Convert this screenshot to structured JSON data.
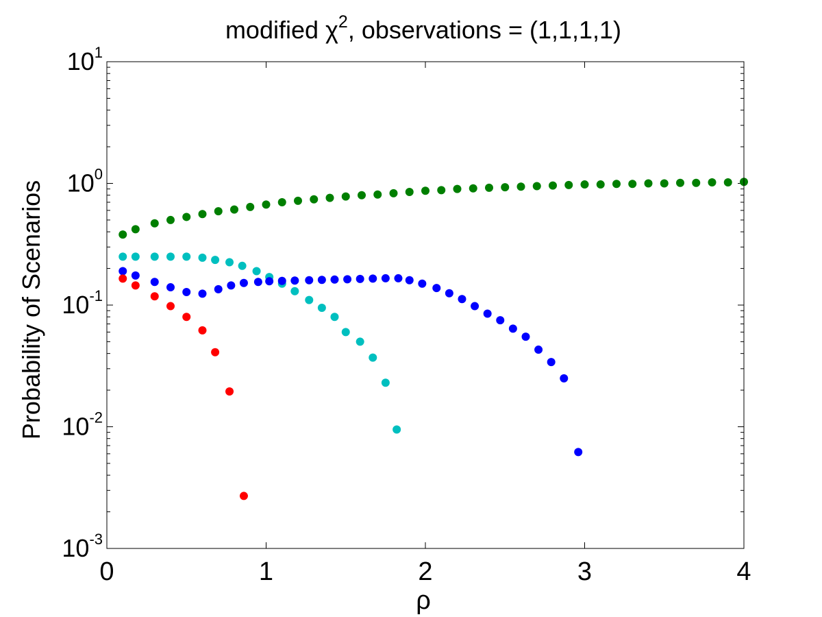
{
  "chart_data": {
    "type": "scatter",
    "title": "modified χ², observations = (1,1,1,1)",
    "title_parts": {
      "pre": "modified χ",
      "sup": "2",
      "post": ", observations = (1,1,1,1)"
    },
    "xlabel": "ρ",
    "ylabel": "Probability of Scenarios",
    "xlim": [
      0,
      4
    ],
    "ylim": [
      0.001,
      10
    ],
    "yscale": "log",
    "grid": false,
    "x_ticks": [
      {
        "value": 0,
        "label": "0"
      },
      {
        "value": 1,
        "label": "1"
      },
      {
        "value": 2,
        "label": "2"
      },
      {
        "value": 3,
        "label": "3"
      },
      {
        "value": 4,
        "label": "4"
      }
    ],
    "y_ticks": [
      {
        "value": 0.001,
        "base": "10",
        "exp": "-3"
      },
      {
        "value": 0.01,
        "base": "10",
        "exp": "-2"
      },
      {
        "value": 0.1,
        "base": "10",
        "exp": "-1"
      },
      {
        "value": 1,
        "base": "10",
        "exp": "0"
      },
      {
        "value": 10,
        "base": "10",
        "exp": "1"
      }
    ],
    "series": [
      {
        "color": "#007f00",
        "x": [
          0.1,
          0.18,
          0.3,
          0.4,
          0.5,
          0.6,
          0.7,
          0.8,
          0.9,
          1.0,
          1.1,
          1.2,
          1.3,
          1.4,
          1.5,
          1.6,
          1.7,
          1.8,
          1.9,
          2.0,
          2.1,
          2.2,
          2.3,
          2.4,
          2.5,
          2.6,
          2.7,
          2.8,
          2.9,
          3.0,
          3.1,
          3.2,
          3.3,
          3.4,
          3.5,
          3.6,
          3.7,
          3.8,
          3.9,
          4.0
        ],
        "y": [
          0.38,
          0.42,
          0.47,
          0.5,
          0.53,
          0.56,
          0.59,
          0.61,
          0.64,
          0.67,
          0.7,
          0.72,
          0.74,
          0.76,
          0.78,
          0.8,
          0.81,
          0.83,
          0.85,
          0.87,
          0.88,
          0.9,
          0.91,
          0.92,
          0.93,
          0.94,
          0.95,
          0.96,
          0.97,
          0.98,
          0.98,
          0.99,
          0.99,
          1.0,
          1.0,
          1.01,
          1.01,
          1.02,
          1.02,
          1.03
        ]
      },
      {
        "color": "#00bfbf",
        "x": [
          0.1,
          0.18,
          0.3,
          0.4,
          0.5,
          0.6,
          0.68,
          0.77,
          0.85,
          0.94,
          1.02,
          1.1,
          1.18,
          1.27,
          1.35,
          1.43,
          1.5,
          1.59,
          1.67,
          1.75,
          1.82
        ],
        "y": [
          0.25,
          0.25,
          0.25,
          0.25,
          0.25,
          0.245,
          0.235,
          0.225,
          0.21,
          0.19,
          0.17,
          0.15,
          0.13,
          0.11,
          0.095,
          0.08,
          0.06,
          0.05,
          0.037,
          0.023,
          0.0095
        ]
      },
      {
        "color": "#0000ff",
        "x": [
          0.1,
          0.18,
          0.3,
          0.4,
          0.5,
          0.6,
          0.7,
          0.78,
          0.86,
          0.95,
          1.02,
          1.1,
          1.18,
          1.27,
          1.35,
          1.43,
          1.51,
          1.59,
          1.67,
          1.75,
          1.83,
          1.9,
          1.98,
          2.07,
          2.15,
          2.23,
          2.31,
          2.39,
          2.47,
          2.55,
          2.63,
          2.71,
          2.79,
          2.87,
          2.96
        ],
        "y": [
          0.19,
          0.175,
          0.155,
          0.14,
          0.128,
          0.124,
          0.135,
          0.145,
          0.152,
          0.155,
          0.157,
          0.158,
          0.159,
          0.16,
          0.161,
          0.162,
          0.163,
          0.164,
          0.165,
          0.166,
          0.166,
          0.16,
          0.15,
          0.138,
          0.125,
          0.112,
          0.098,
          0.085,
          0.075,
          0.064,
          0.055,
          0.043,
          0.034,
          0.025,
          0.0062
        ]
      },
      {
        "color": "#ff0000",
        "x": [
          0.1,
          0.18,
          0.3,
          0.4,
          0.5,
          0.6,
          0.68,
          0.77,
          0.86
        ],
        "y": [
          0.165,
          0.145,
          0.118,
          0.098,
          0.08,
          0.062,
          0.041,
          0.0195,
          0.0027
        ]
      }
    ]
  }
}
